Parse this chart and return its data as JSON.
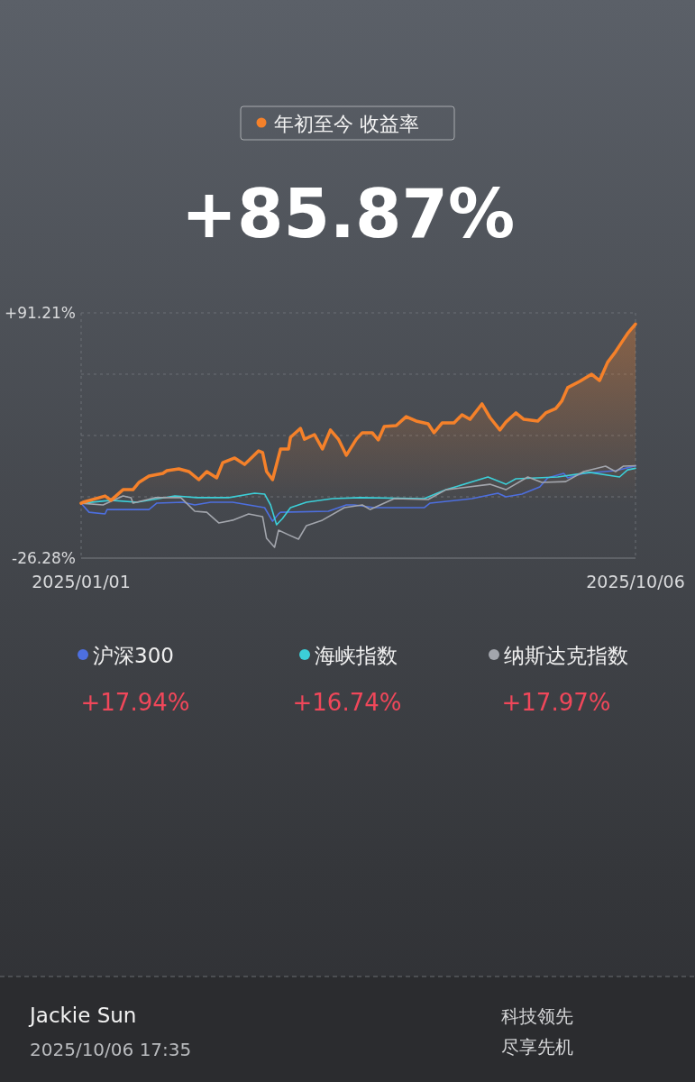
{
  "chart_data": {
    "type": "line",
    "title": "年初至今 收益率",
    "xlim": [
      "2025-01-01",
      "2025-10-06"
    ],
    "xticks": [
      {
        "value": "2025-01-01",
        "label": "2025/01/01"
      },
      {
        "value": "2025-10-06",
        "label": "2025/10/06"
      }
    ],
    "ylim": [
      -26.28,
      91.21
    ],
    "yticks": [
      {
        "value": -26.28,
        "label": "-26.28%"
      },
      {
        "value": 3.09,
        "label": null
      },
      {
        "value": 32.47,
        "label": null
      },
      {
        "value": 61.84,
        "label": null
      },
      {
        "value": 91.21,
        "label": "+91.21%"
      }
    ],
    "grid": "y",
    "legend": "bottom",
    "series": [
      {
        "type": "area",
        "color": "#f5812a",
        "x": [
          "2025-01-01",
          "2025-01-02",
          "2025-01-13",
          "2025-01-16",
          "2025-01-22",
          "2025-01-27",
          "2025-01-30",
          "2025-02-04",
          "2025-02-11",
          "2025-02-13",
          "2025-02-19",
          "2025-02-24",
          "2025-03-01",
          "2025-03-05",
          "2025-03-10",
          "2025-03-13",
          "2025-03-19",
          "2025-03-24",
          "2025-03-31",
          "2025-04-02",
          "2025-04-04",
          "2025-04-07",
          "2025-04-11",
          "2025-04-15",
          "2025-04-16",
          "2025-04-21",
          "2025-04-23",
          "2025-04-28",
          "2025-05-02",
          "2025-05-06",
          "2025-05-10",
          "2025-05-14",
          "2025-05-19",
          "2025-05-22",
          "2025-05-27",
          "2025-05-30",
          "2025-06-02",
          "2025-06-08",
          "2025-06-13",
          "2025-06-18",
          "2025-06-24",
          "2025-06-27",
          "2025-07-01",
          "2025-07-07",
          "2025-07-11",
          "2025-07-15",
          "2025-07-21",
          "2025-07-25",
          "2025-07-30",
          "2025-08-02",
          "2025-08-07",
          "2025-08-11",
          "2025-08-18",
          "2025-08-22",
          "2025-08-27",
          "2025-08-30",
          "2025-09-02",
          "2025-09-08",
          "2025-09-14",
          "2025-09-18",
          "2025-09-22",
          "2025-09-26",
          "2025-09-29",
          "2025-10-02",
          "2025-10-06"
        ],
        "values": [
          0,
          0.5,
          3.5,
          1.4,
          6.5,
          6.5,
          10.0,
          13.0,
          14.3,
          15.6,
          16.5,
          15.2,
          11.3,
          15.2,
          12.2,
          19.5,
          21.7,
          18.6,
          25.1,
          24.3,
          15.2,
          11.3,
          26.0,
          26.0,
          31.6,
          35.9,
          30.7,
          32.9,
          26.0,
          35.1,
          30.7,
          23.0,
          30.7,
          33.8,
          33.8,
          30.3,
          36.8,
          37.2,
          41.5,
          39.4,
          38.1,
          33.8,
          38.5,
          38.5,
          42.4,
          40.2,
          47.6,
          41.1,
          35.1,
          38.9,
          43.3,
          40.2,
          39.4,
          43.3,
          45.4,
          48.9,
          55.4,
          58.4,
          61.8,
          58.8,
          67.5,
          72.6,
          77.0,
          81.3,
          85.87
        ]
      },
      {
        "name": "沪深300",
        "color": "#4d6fe0",
        "x": [
          "2025-01-01",
          "2025-01-05",
          "2025-01-13",
          "2025-01-14",
          "2025-02-04",
          "2025-02-08",
          "2025-02-21",
          "2025-02-27",
          "2025-03-07",
          "2025-03-18",
          "2025-04-03",
          "2025-04-07",
          "2025-04-10",
          "2025-04-11",
          "2025-05-05",
          "2025-05-14",
          "2025-05-18",
          "2025-05-28",
          "2025-06-22",
          "2025-06-25",
          "2025-07-16",
          "2025-07-29",
          "2025-08-02",
          "2025-08-10",
          "2025-08-19",
          "2025-08-23",
          "2025-08-31",
          "2025-09-02",
          "2025-09-10",
          "2025-09-26",
          "2025-10-06"
        ],
        "values": [
          0,
          -4.3,
          -5.1,
          -3.0,
          -3.0,
          0.1,
          0.5,
          -0.8,
          0.5,
          0.5,
          -2.1,
          -8.6,
          -5.1,
          -4.3,
          -3.8,
          -0.8,
          -0.8,
          -2.1,
          -2.1,
          0.1,
          2.2,
          4.8,
          3.1,
          4.4,
          7.8,
          12.2,
          14.3,
          12.2,
          14.3,
          15.6,
          17.94
        ]
      },
      {
        "name": "海峡指数",
        "color": "#3ccfd8",
        "x": [
          "2025-01-01",
          "2025-01-16",
          "2025-01-29",
          "2025-02-17",
          "2025-02-28",
          "2025-03-16",
          "2025-03-29",
          "2025-04-03",
          "2025-04-06",
          "2025-04-09",
          "2025-04-12",
          "2025-04-16",
          "2025-04-24",
          "2025-05-07",
          "2025-05-21",
          "2025-06-22",
          "2025-07-03",
          "2025-07-24",
          "2025-08-02",
          "2025-08-07",
          "2025-08-28",
          "2025-09-13",
          "2025-09-28",
          "2025-10-02",
          "2025-10-06"
        ],
        "values": [
          0,
          1.4,
          0.5,
          3.5,
          2.7,
          2.7,
          4.8,
          4.4,
          -0.8,
          -10.3,
          -7.3,
          -2.1,
          0.5,
          2.2,
          2.7,
          2.2,
          6.5,
          12.6,
          9.1,
          11.7,
          12.6,
          14.8,
          12.6,
          16.0,
          16.74
        ]
      },
      {
        "name": "纳斯达克指数",
        "color": "#a3a6ad",
        "x": [
          "2025-01-01",
          "2025-01-12",
          "2025-01-22",
          "2025-01-26",
          "2025-01-27",
          "2025-02-07",
          "2025-02-20",
          "2025-02-27",
          "2025-03-05",
          "2025-03-11",
          "2025-03-18",
          "2025-03-26",
          "2025-04-02",
          "2025-04-04",
          "2025-04-08",
          "2025-04-10",
          "2025-04-15",
          "2025-04-20",
          "2025-04-24",
          "2025-05-02",
          "2025-05-13",
          "2025-05-22",
          "2025-05-26",
          "2025-06-07",
          "2025-06-24",
          "2025-07-03",
          "2025-07-25",
          "2025-08-02",
          "2025-08-13",
          "2025-08-20",
          "2025-09-01",
          "2025-09-10",
          "2025-09-21",
          "2025-09-26",
          "2025-09-30",
          "2025-10-06"
        ],
        "values": [
          0,
          -0.8,
          3.5,
          2.7,
          0.1,
          2.7,
          2.7,
          -3.8,
          -4.3,
          -9.4,
          -8.1,
          -5.1,
          -6.4,
          -16.8,
          -21.1,
          -12.9,
          -15.1,
          -17.2,
          -10.7,
          -8.1,
          -2.1,
          -0.8,
          -3.0,
          2.2,
          1.8,
          6.5,
          9.1,
          6.5,
          12.6,
          10.0,
          10.4,
          15.2,
          17.8,
          15.2,
          17.8,
          17.97
        ]
      }
    ],
    "annotations": [
      "+17.94%",
      "+16.74%",
      "+17.97%",
      "+85.87%",
      "Jackie Sun",
      "2025/10/06 17:35",
      "科技领先",
      "尽享先机"
    ]
  }
}
